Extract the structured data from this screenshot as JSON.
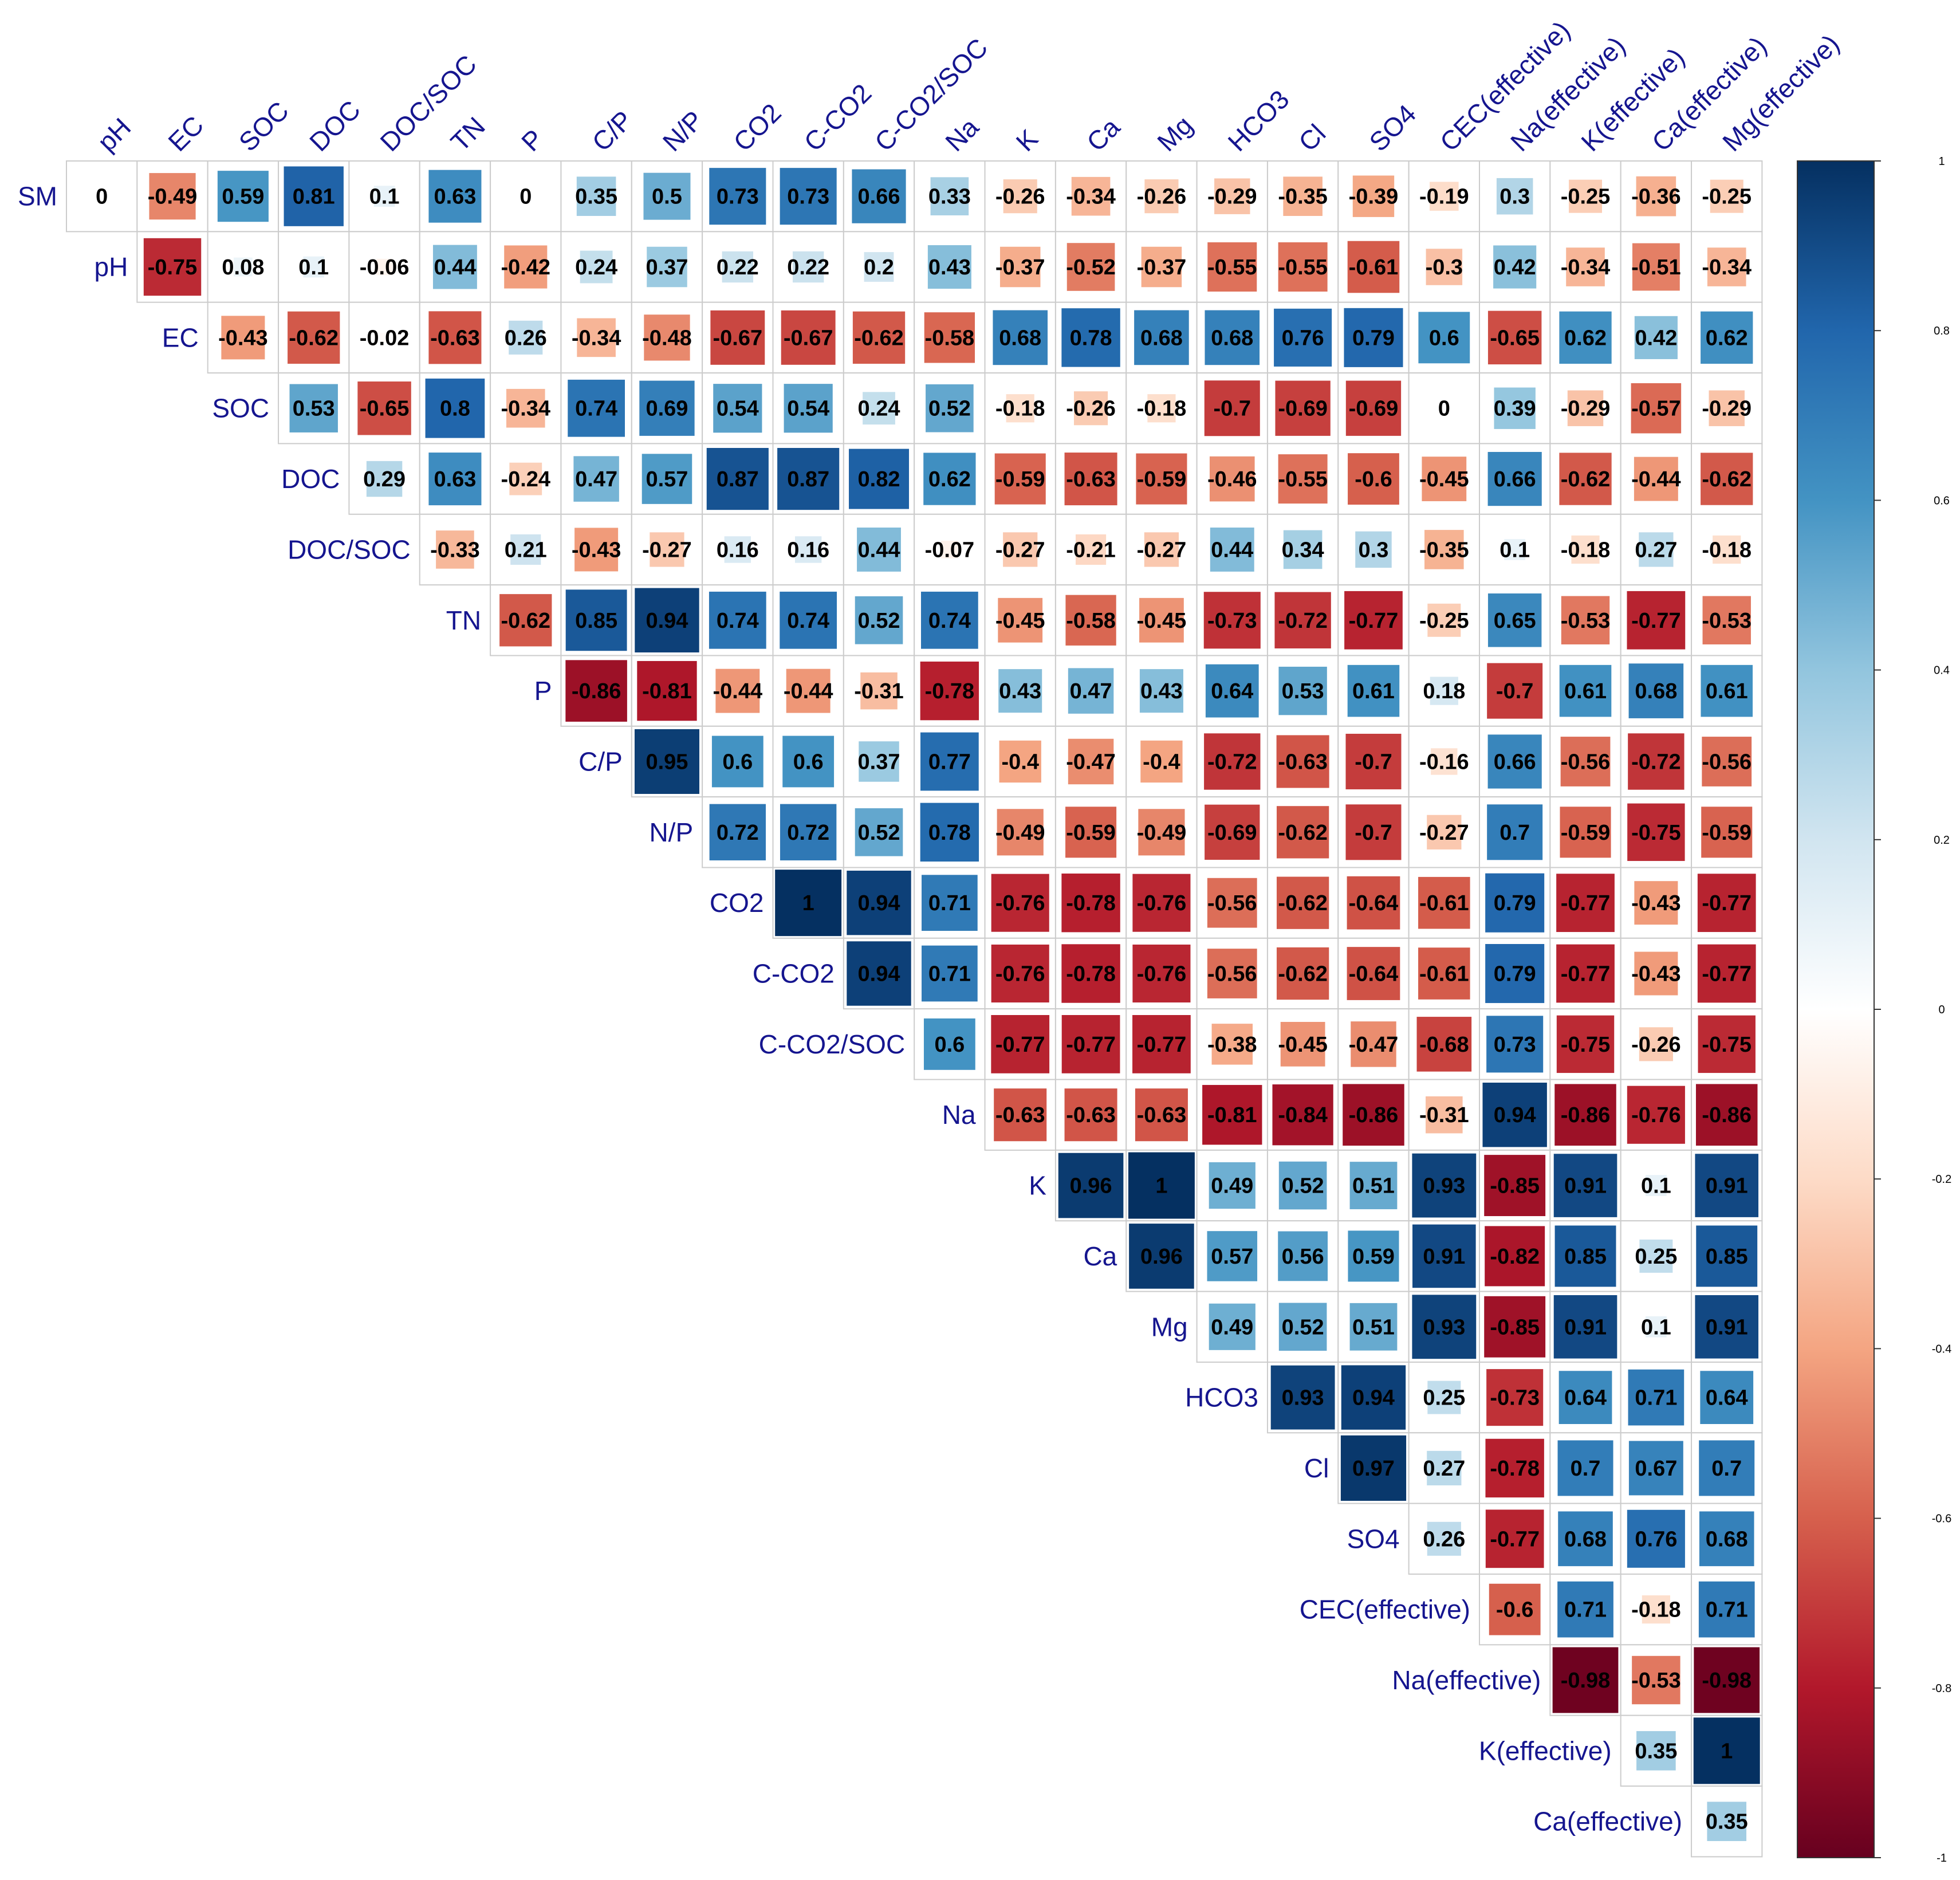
{
  "chart_data": {
    "type": "heatmap",
    "subtype": "correlation-matrix-upper-triangle",
    "variables": [
      "SM",
      "pH",
      "EC",
      "SOC",
      "DOC",
      "DOC/SOC",
      "TN",
      "P",
      "C/P",
      "N/P",
      "CO2",
      "C-CO2",
      "C-CO2/SOC",
      "Na",
      "K",
      "Ca",
      "Mg",
      "HCO3",
      "Cl",
      "SO4",
      "CEC(effective)",
      "Na(effective)",
      "K(effective)",
      "Ca(effective)",
      "Mg(effective)"
    ],
    "row_labels": [
      "SM",
      "pH",
      "EC",
      "SOC",
      "DOC",
      "DOC/SOC",
      "TN",
      "P",
      "C/P",
      "N/P",
      "CO2",
      "C-CO2",
      "C-CO2/SOC",
      "Na",
      "K",
      "Ca",
      "Mg",
      "HCO3",
      "Cl",
      "SO4",
      "CEC(effective)",
      "Na(effective)",
      "K(effective)",
      "Ca(effective)"
    ],
    "col_labels": [
      "pH",
      "EC",
      "SOC",
      "DOC",
      "DOC/SOC",
      "TN",
      "P",
      "C/P",
      "N/P",
      "CO2",
      "C-CO2",
      "C-CO2/SOC",
      "Na",
      "K",
      "Ca",
      "Mg",
      "HCO3",
      "Cl",
      "SO4",
      "CEC(effective)",
      "Na(effective)",
      "K(effective)",
      "Ca(effective)",
      "Mg(effective)"
    ],
    "rows": [
      [
        "0",
        "-0.49",
        "0.59",
        "0.81",
        "0.1",
        "0.63",
        "0",
        "0.35",
        "0.5",
        "0.73",
        "0.73",
        "0.66",
        "0.33",
        "-0.26",
        "-0.34",
        "-0.26",
        "-0.29",
        "-0.35",
        "-0.39",
        "-0.19",
        "0.3",
        "-0.25",
        "-0.36",
        "-0.25"
      ],
      [
        "-0.75",
        "0.08",
        "0.1",
        "-0.06",
        "0.44",
        "-0.42",
        "0.24",
        "0.37",
        "0.22",
        "0.22",
        "0.2",
        "0.43",
        "-0.37",
        "-0.52",
        "-0.37",
        "-0.55",
        "-0.55",
        "-0.61",
        "-0.3",
        "0.42",
        "-0.34",
        "-0.51",
        "-0.34"
      ],
      [
        "-0.43",
        "-0.62",
        "-0.02",
        "-0.63",
        "0.26",
        "-0.34",
        "-0.48",
        "-0.67",
        "-0.67",
        "-0.62",
        "-0.58",
        "0.68",
        "0.78",
        "0.68",
        "0.68",
        "0.76",
        "0.79",
        "0.6",
        "-0.65",
        "0.62",
        "0.42",
        "0.62"
      ],
      [
        "0.53",
        "-0.65",
        "0.8",
        "-0.34",
        "0.74",
        "0.69",
        "0.54",
        "0.54",
        "0.24",
        "0.52",
        "-0.18",
        "-0.26",
        "-0.18",
        "-0.7",
        "-0.69",
        "-0.69",
        "0",
        "0.39",
        "-0.29",
        "-0.57",
        "-0.29"
      ],
      [
        "0.29",
        "0.63",
        "-0.24",
        "0.47",
        "0.57",
        "0.87",
        "0.87",
        "0.82",
        "0.62",
        "-0.59",
        "-0.63",
        "-0.59",
        "-0.46",
        "-0.55",
        "-0.6",
        "-0.45",
        "0.66",
        "-0.62",
        "-0.44",
        "-0.62"
      ],
      [
        "-0.33",
        "0.21",
        "-0.43",
        "-0.27",
        "0.16",
        "0.16",
        "0.44",
        "-0.07",
        "-0.27",
        "-0.21",
        "-0.27",
        "0.44",
        "0.34",
        "0.3",
        "-0.35",
        "0.1",
        "-0.18",
        "0.27",
        "-0.18"
      ],
      [
        "-0.62",
        "0.85",
        "0.94",
        "0.74",
        "0.74",
        "0.52",
        "0.74",
        "-0.45",
        "-0.58",
        "-0.45",
        "-0.73",
        "-0.72",
        "-0.77",
        "-0.25",
        "0.65",
        "-0.53",
        "-0.77",
        "-0.53"
      ],
      [
        "-0.86",
        "-0.81",
        "-0.44",
        "-0.44",
        "-0.31",
        "-0.78",
        "0.43",
        "0.47",
        "0.43",
        "0.64",
        "0.53",
        "0.61",
        "0.18",
        "-0.7",
        "0.61",
        "0.68",
        "0.61"
      ],
      [
        "0.95",
        "0.6",
        "0.6",
        "0.37",
        "0.77",
        "-0.4",
        "-0.47",
        "-0.4",
        "-0.72",
        "-0.63",
        "-0.7",
        "-0.16",
        "0.66",
        "-0.56",
        "-0.72",
        "-0.56"
      ],
      [
        "0.72",
        "0.72",
        "0.52",
        "0.78",
        "-0.49",
        "-0.59",
        "-0.49",
        "-0.69",
        "-0.62",
        "-0.7",
        "-0.27",
        "0.7",
        "-0.59",
        "-0.75",
        "-0.59"
      ],
      [
        "1",
        "0.94",
        "0.71",
        "-0.76",
        "-0.78",
        "-0.76",
        "-0.56",
        "-0.62",
        "-0.64",
        "-0.61",
        "0.79",
        "-0.77",
        "-0.43",
        "-0.77"
      ],
      [
        "0.94",
        "0.71",
        "-0.76",
        "-0.78",
        "-0.76",
        "-0.56",
        "-0.62",
        "-0.64",
        "-0.61",
        "0.79",
        "-0.77",
        "-0.43",
        "-0.77"
      ],
      [
        "0.6",
        "-0.77",
        "-0.77",
        "-0.77",
        "-0.38",
        "-0.45",
        "-0.47",
        "-0.68",
        "0.73",
        "-0.75",
        "-0.26",
        "-0.75"
      ],
      [
        "-0.63",
        "-0.63",
        "-0.63",
        "-0.81",
        "-0.84",
        "-0.86",
        "-0.31",
        "0.94",
        "-0.86",
        "-0.76",
        "-0.86"
      ],
      [
        "0.96",
        "1",
        "0.49",
        "0.52",
        "0.51",
        "0.93",
        "-0.85",
        "0.91",
        "0.1",
        "0.91"
      ],
      [
        "0.96",
        "0.57",
        "0.56",
        "0.59",
        "0.91",
        "-0.82",
        "0.85",
        "0.25",
        "0.85"
      ],
      [
        "0.49",
        "0.52",
        "0.51",
        "0.93",
        "-0.85",
        "0.91",
        "0.1",
        "0.91"
      ],
      [
        "0.93",
        "0.94",
        "0.25",
        "-0.73",
        "0.64",
        "0.71",
        "0.64"
      ],
      [
        "0.97",
        "0.27",
        "-0.78",
        "0.7",
        "0.67",
        "0.7"
      ],
      [
        "0.26",
        "-0.77",
        "0.68",
        "0.76",
        "0.68"
      ],
      [
        "-0.6",
        "0.71",
        "-0.18",
        "0.71"
      ],
      [
        "-0.98",
        "-0.53",
        "-0.98"
      ],
      [
        "0.35",
        "1"
      ],
      [
        "0.35"
      ]
    ],
    "color_scale": {
      "min": -1,
      "max": 1,
      "stops": [
        {
          "value": -1,
          "color": "#67001f"
        },
        {
          "value": -0.8,
          "color": "#b2182b"
        },
        {
          "value": -0.6,
          "color": "#d6604d"
        },
        {
          "value": -0.4,
          "color": "#f4a582"
        },
        {
          "value": -0.2,
          "color": "#fddbc7"
        },
        {
          "value": 0,
          "color": "#ffffff"
        },
        {
          "value": 0.2,
          "color": "#d1e5f0"
        },
        {
          "value": 0.4,
          "color": "#92c5de"
        },
        {
          "value": 0.6,
          "color": "#4393c3"
        },
        {
          "value": 0.8,
          "color": "#2166ac"
        },
        {
          "value": 1,
          "color": "#053061"
        }
      ]
    },
    "colorbar_ticks": [
      "1",
      "0.8",
      "0.6",
      "0.4",
      "0.2",
      "0",
      "-0.2",
      "-0.4",
      "-0.6",
      "-0.8",
      "-1"
    ],
    "label_color": "#15158f",
    "grid_color": "#cccccc"
  }
}
